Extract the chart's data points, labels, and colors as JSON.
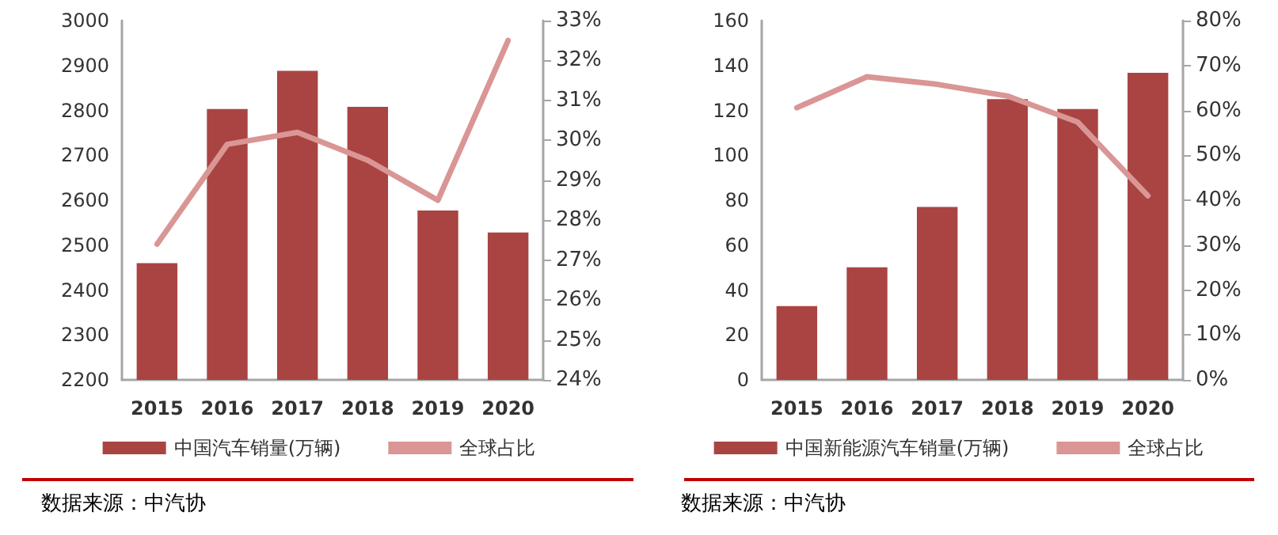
{
  "chart_data": [
    {
      "type": "bar",
      "categories": [
        "2015",
        "2016",
        "2017",
        "2018",
        "2019",
        "2020"
      ],
      "series": [
        {
          "name": "中国汽车销量(万辆)",
          "color": "#a94442",
          "values": [
            2460,
            2803,
            2888,
            2808,
            2577,
            2528
          ]
        },
        {
          "name": "全球占比",
          "type": "line",
          "axis": "y2",
          "color": "#d99694",
          "values": [
            27.4,
            29.9,
            30.2,
            29.5,
            28.5,
            32.5
          ]
        }
      ],
      "ylim": [
        2200,
        3000
      ],
      "yticks": [
        2200,
        2300,
        2400,
        2500,
        2600,
        2700,
        2800,
        2900,
        3000
      ],
      "y2lim": [
        24,
        33
      ],
      "y2ticks": [
        {
          "value": 24,
          "label": "24%"
        },
        {
          "value": 25,
          "label": "25%"
        },
        {
          "value": 26,
          "label": "26%"
        },
        {
          "value": 27,
          "label": "27%"
        },
        {
          "value": 28,
          "label": "28%"
        },
        {
          "value": 29,
          "label": "29%"
        },
        {
          "value": 30,
          "label": "30%"
        },
        {
          "value": 31,
          "label": "31%"
        },
        {
          "value": 32,
          "label": "32%"
        },
        {
          "value": 33,
          "label": "33%"
        }
      ],
      "grid": false,
      "legend": "bottom",
      "marker": "none",
      "line_style": "solid",
      "annotations": [
        "数据来源：中汽协"
      ]
    },
    {
      "type": "bar",
      "categories": [
        "2015",
        "2016",
        "2017",
        "2018",
        "2019",
        "2020"
      ],
      "series": [
        {
          "name": "中国新能源汽车销量(万辆)",
          "color": "#a94442",
          "values": [
            32.9,
            50.1,
            77.0,
            125.0,
            120.6,
            136.7
          ]
        },
        {
          "name": "全球占比",
          "type": "line",
          "axis": "y2",
          "color": "#d99694",
          "values": [
            60.6,
            67.5,
            65.8,
            63.2,
            57.4,
            41.0
          ]
        }
      ],
      "ylim": [
        0,
        160
      ],
      "yticks": [
        0,
        20,
        40,
        60,
        80,
        100,
        120,
        140,
        160
      ],
      "y2lim": [
        0,
        80
      ],
      "y2ticks": [
        {
          "value": 0,
          "label": "0%"
        },
        {
          "value": 10,
          "label": "10%"
        },
        {
          "value": 20,
          "label": "20%"
        },
        {
          "value": 30,
          "label": "30%"
        },
        {
          "value": 40,
          "label": "40%"
        },
        {
          "value": 50,
          "label": "50%"
        },
        {
          "value": 60,
          "label": "60%"
        },
        {
          "value": 70,
          "label": "70%"
        },
        {
          "value": 80,
          "label": "80%"
        }
      ],
      "grid": false,
      "legend": "bottom",
      "marker": "none",
      "line_style": "solid",
      "annotations": [
        "数据来源：中汽协"
      ]
    }
  ]
}
